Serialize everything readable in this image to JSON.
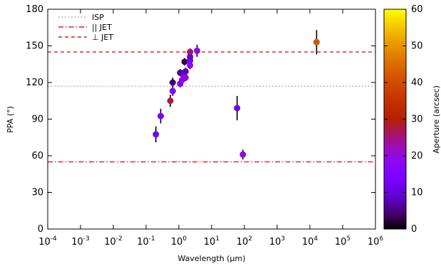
{
  "chart_data": {
    "type": "scatter",
    "xlabel": "Wavelength (µm)",
    "ylabel": "PPA (°)",
    "x_scale": "log",
    "xlim": [
      0.0001,
      1000000
    ],
    "ylim": [
      0,
      180
    ],
    "x_ticks": [
      {
        "value": 0.0001,
        "base": "10",
        "exp": "-4"
      },
      {
        "value": 0.001,
        "base": "10",
        "exp": "-3"
      },
      {
        "value": 0.01,
        "base": "10",
        "exp": "-2"
      },
      {
        "value": 0.1,
        "base": "10",
        "exp": "-1"
      },
      {
        "value": 1,
        "base": "10",
        "exp": "0"
      },
      {
        "value": 10,
        "base": "10",
        "exp": "1"
      },
      {
        "value": 100,
        "base": "10",
        "exp": "2"
      },
      {
        "value": 1000,
        "base": "10",
        "exp": "3"
      },
      {
        "value": 10000,
        "base": "10",
        "exp": "4"
      },
      {
        "value": 100000,
        "base": "10",
        "exp": "5"
      },
      {
        "value": 1000000,
        "base": "10",
        "exp": "6"
      }
    ],
    "y_ticks": [
      "0",
      "30",
      "60",
      "90",
      "120",
      "150",
      "180"
    ],
    "grid": false,
    "legend_position": "top-left",
    "reference_lines": [
      {
        "name": "ISP",
        "y": 117,
        "style": "dotted",
        "color": "#a0a0a0"
      },
      {
        "name": "|| JET",
        "y": 55,
        "style": "dash-dot",
        "color": "#e41a1c"
      },
      {
        "name": "⊥ JET",
        "y": 145,
        "style": "dashed",
        "color": "#e41a1c"
      }
    ],
    "colorbar": {
      "label": "Aperture (arcsec)",
      "range": [
        0,
        60
      ],
      "ticks": [
        "0",
        "10",
        "20",
        "30",
        "40",
        "50",
        "60"
      ],
      "colormap": "gnuplot"
    },
    "points": [
      {
        "x": 0.2,
        "y": 77.5,
        "err": 6.5,
        "aperture": 12
      },
      {
        "x": 0.28,
        "y": 92.5,
        "err": 6,
        "aperture": 14
      },
      {
        "x": 0.55,
        "y": 105,
        "err": 5,
        "aperture": 28
      },
      {
        "x": 0.65,
        "y": 113,
        "err": 4,
        "aperture": 16
      },
      {
        "x": 0.65,
        "y": 120,
        "err": 4,
        "aperture": 4
      },
      {
        "x": 1.1,
        "y": 119,
        "err": 3,
        "aperture": 16
      },
      {
        "x": 1.1,
        "y": 128,
        "err": 3,
        "aperture": 5
      },
      {
        "x": 1.25,
        "y": 122,
        "err": 3,
        "aperture": 18
      },
      {
        "x": 1.4,
        "y": 126,
        "err": 3,
        "aperture": 12
      },
      {
        "x": 1.6,
        "y": 124,
        "err": 3,
        "aperture": 20
      },
      {
        "x": 1.6,
        "y": 129,
        "err": 3,
        "aperture": 8
      },
      {
        "x": 1.5,
        "y": 137,
        "err": 3,
        "aperture": 3
      },
      {
        "x": 2.2,
        "y": 134,
        "err": 3,
        "aperture": 18
      },
      {
        "x": 2.2,
        "y": 138,
        "err": 3,
        "aperture": 14
      },
      {
        "x": 2.2,
        "y": 141,
        "err": 3,
        "aperture": 9
      },
      {
        "x": 2.2,
        "y": 145,
        "err": 3,
        "aperture": 25
      },
      {
        "x": 3.6,
        "y": 146,
        "err": 5,
        "aperture": 20
      },
      {
        "x": 60,
        "y": 99,
        "err": 10,
        "aperture": 12
      },
      {
        "x": 90,
        "y": 61,
        "err": 4,
        "aperture": 20
      },
      {
        "x": 16000,
        "y": 153,
        "err": 10,
        "aperture": 42
      }
    ]
  }
}
